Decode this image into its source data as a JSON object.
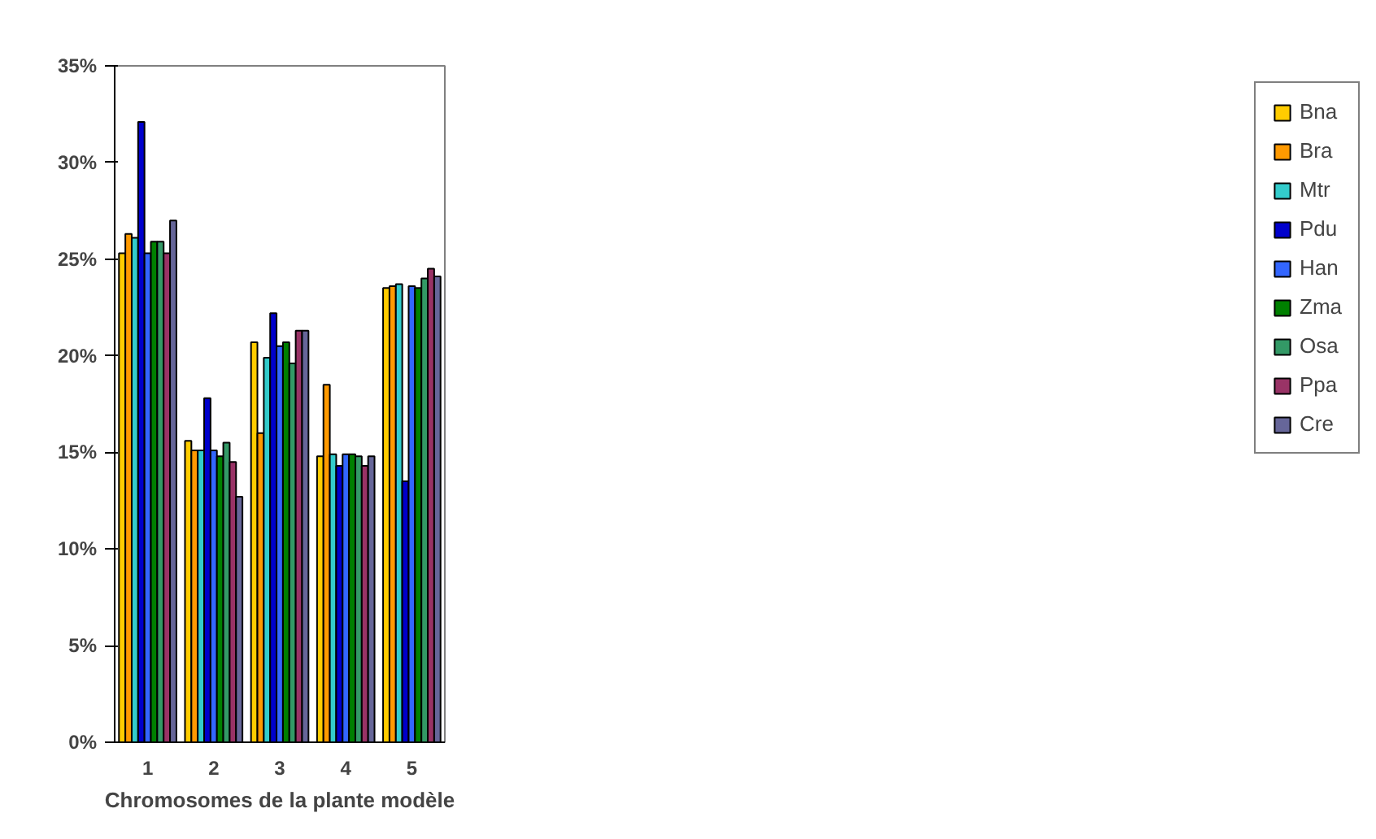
{
  "chart_data": {
    "type": "bar",
    "xlabel": "Chromosomes de la plante modèle",
    "categories": [
      "1",
      "2",
      "3",
      "4",
      "5"
    ],
    "series": [
      {
        "name": "Bna",
        "color": "#ffcc00",
        "values": [
          25.3,
          15.6,
          20.7,
          14.8,
          23.5
        ]
      },
      {
        "name": "Bra",
        "color": "#ff9900",
        "values": [
          26.3,
          15.1,
          16.0,
          18.5,
          23.6
        ]
      },
      {
        "name": "Mtr",
        "color": "#33cccc",
        "values": [
          26.1,
          15.1,
          19.9,
          14.9,
          23.7
        ]
      },
      {
        "name": "Pdu",
        "color": "#0000cc",
        "values": [
          32.1,
          17.8,
          22.2,
          14.3,
          13.5
        ]
      },
      {
        "name": "Han",
        "color": "#3366ff",
        "values": [
          25.3,
          15.1,
          20.5,
          14.9,
          23.6
        ]
      },
      {
        "name": "Zma",
        "color": "#008000",
        "values": [
          25.9,
          14.8,
          20.7,
          14.9,
          23.5
        ]
      },
      {
        "name": "Osa",
        "color": "#339966",
        "values": [
          25.9,
          15.5,
          19.6,
          14.8,
          24.0
        ]
      },
      {
        "name": "Ppa",
        "color": "#993366",
        "values": [
          25.3,
          14.5,
          21.3,
          14.3,
          24.5
        ]
      },
      {
        "name": "Cre",
        "color": "#666699",
        "values": [
          27.0,
          12.7,
          21.3,
          14.8,
          24.1
        ]
      }
    ],
    "ylim": [
      0,
      35
    ],
    "yticks": [
      {
        "value": 0,
        "label": "0%"
      },
      {
        "value": 5,
        "label": "5%"
      },
      {
        "value": 10,
        "label": "10%"
      },
      {
        "value": 15,
        "label": "15%"
      },
      {
        "value": 20,
        "label": "20%"
      },
      {
        "value": 25,
        "label": "25%"
      },
      {
        "value": 30,
        "label": "30%"
      },
      {
        "value": 35,
        "label": "35%"
      }
    ],
    "grid": false,
    "legend": "right"
  }
}
